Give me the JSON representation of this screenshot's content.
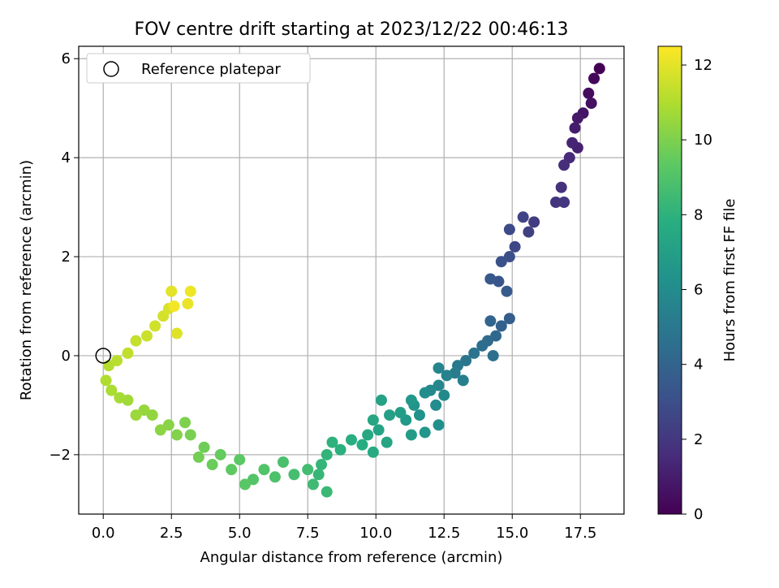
{
  "chart_data": {
    "type": "scatter",
    "title": "FOV centre drift starting at 2023/12/22 00:46:13",
    "xlabel": "Angular distance from reference (arcmin)",
    "ylabel": "Rotation from reference (arcmin)",
    "xlim": [
      -0.9,
      19.1
    ],
    "ylim": [
      -3.2,
      6.25
    ],
    "x_ticks": [
      "0.0",
      "2.5",
      "5.0",
      "7.5",
      "10.0",
      "12.5",
      "15.0",
      "17.5"
    ],
    "y_ticks": [
      "−2",
      "0",
      "2",
      "4",
      "6"
    ],
    "grid": true,
    "legend": {
      "position": "top-left",
      "entries": [
        "Reference platepar"
      ]
    },
    "colorbar": {
      "label": "Hours from first FF file",
      "min": 0,
      "max": 12.5,
      "ticks": [
        "0",
        "2",
        "4",
        "6",
        "8",
        "10",
        "12"
      ],
      "colormap": "viridis"
    },
    "reference_point": {
      "x": 0.0,
      "y": 0.0
    },
    "series": [
      {
        "points": [
          {
            "x": 18.2,
            "y": 5.8,
            "h": 0.0
          },
          {
            "x": 18.0,
            "y": 5.6,
            "h": 0.2
          },
          {
            "x": 17.8,
            "y": 5.3,
            "h": 0.4
          },
          {
            "x": 17.9,
            "y": 5.1,
            "h": 0.55
          },
          {
            "x": 17.6,
            "y": 4.9,
            "h": 0.7
          },
          {
            "x": 17.4,
            "y": 4.8,
            "h": 0.85
          },
          {
            "x": 17.3,
            "y": 4.6,
            "h": 1.0
          },
          {
            "x": 17.4,
            "y": 4.2,
            "h": 1.15
          },
          {
            "x": 17.2,
            "y": 4.3,
            "h": 1.3
          },
          {
            "x": 17.1,
            "y": 4.0,
            "h": 1.45
          },
          {
            "x": 16.9,
            "y": 3.85,
            "h": 1.6
          },
          {
            "x": 16.8,
            "y": 3.4,
            "h": 1.75
          },
          {
            "x": 16.6,
            "y": 3.1,
            "h": 1.9
          },
          {
            "x": 16.9,
            "y": 3.1,
            "h": 2.0
          },
          {
            "x": 15.8,
            "y": 2.7,
            "h": 2.2
          },
          {
            "x": 15.6,
            "y": 2.5,
            "h": 2.35
          },
          {
            "x": 15.4,
            "y": 2.8,
            "h": 2.5
          },
          {
            "x": 15.1,
            "y": 2.2,
            "h": 2.65
          },
          {
            "x": 14.9,
            "y": 2.55,
            "h": 2.8
          },
          {
            "x": 14.9,
            "y": 2.0,
            "h": 2.95
          },
          {
            "x": 14.6,
            "y": 1.9,
            "h": 3.1
          },
          {
            "x": 14.5,
            "y": 1.5,
            "h": 3.25
          },
          {
            "x": 14.2,
            "y": 1.55,
            "h": 3.4
          },
          {
            "x": 14.8,
            "y": 1.3,
            "h": 3.55
          },
          {
            "x": 14.9,
            "y": 0.75,
            "h": 3.7
          },
          {
            "x": 14.6,
            "y": 0.6,
            "h": 3.85
          },
          {
            "x": 14.2,
            "y": 0.7,
            "h": 4.0
          },
          {
            "x": 14.4,
            "y": 0.4,
            "h": 4.15
          },
          {
            "x": 14.1,
            "y": 0.3,
            "h": 4.3
          },
          {
            "x": 13.9,
            "y": 0.2,
            "h": 4.45
          },
          {
            "x": 14.3,
            "y": 0.0,
            "h": 4.6
          },
          {
            "x": 13.6,
            "y": 0.05,
            "h": 4.75
          },
          {
            "x": 13.3,
            "y": -0.1,
            "h": 4.9
          },
          {
            "x": 13.0,
            "y": -0.2,
            "h": 5.05
          },
          {
            "x": 12.9,
            "y": -0.35,
            "h": 5.2
          },
          {
            "x": 13.2,
            "y": -0.5,
            "h": 5.35
          },
          {
            "x": 12.6,
            "y": -0.4,
            "h": 5.5
          },
          {
            "x": 12.3,
            "y": -0.25,
            "h": 5.6
          },
          {
            "x": 12.3,
            "y": -0.6,
            "h": 5.7
          },
          {
            "x": 12.0,
            "y": -0.7,
            "h": 5.8
          },
          {
            "x": 12.5,
            "y": -0.8,
            "h": 5.9
          },
          {
            "x": 12.2,
            "y": -1.0,
            "h": 6.0
          },
          {
            "x": 11.8,
            "y": -0.75,
            "h": 6.1
          },
          {
            "x": 12.3,
            "y": -1.4,
            "h": 6.2
          },
          {
            "x": 11.6,
            "y": -1.2,
            "h": 6.3
          },
          {
            "x": 11.4,
            "y": -1.0,
            "h": 6.4
          },
          {
            "x": 11.8,
            "y": -1.55,
            "h": 6.5
          },
          {
            "x": 11.3,
            "y": -0.9,
            "h": 6.6
          },
          {
            "x": 11.1,
            "y": -1.3,
            "h": 6.7
          },
          {
            "x": 11.3,
            "y": -1.6,
            "h": 6.8
          },
          {
            "x": 10.9,
            "y": -1.15,
            "h": 6.9
          },
          {
            "x": 10.5,
            "y": -1.2,
            "h": 7.0
          },
          {
            "x": 10.2,
            "y": -0.9,
            "h": 7.1
          },
          {
            "x": 10.1,
            "y": -1.5,
            "h": 7.2
          },
          {
            "x": 10.4,
            "y": -1.75,
            "h": 7.3
          },
          {
            "x": 9.9,
            "y": -1.3,
            "h": 7.4
          },
          {
            "x": 9.7,
            "y": -1.6,
            "h": 7.5
          },
          {
            "x": 9.9,
            "y": -1.95,
            "h": 7.6
          },
          {
            "x": 9.5,
            "y": -1.8,
            "h": 7.7
          },
          {
            "x": 9.1,
            "y": -1.7,
            "h": 7.8
          },
          {
            "x": 8.7,
            "y": -1.9,
            "h": 7.9
          },
          {
            "x": 8.4,
            "y": -1.75,
            "h": 8.0
          },
          {
            "x": 8.2,
            "y": -2.0,
            "h": 8.1
          },
          {
            "x": 8.0,
            "y": -2.2,
            "h": 8.2
          },
          {
            "x": 7.9,
            "y": -2.4,
            "h": 8.3
          },
          {
            "x": 8.2,
            "y": -2.75,
            "h": 8.4
          },
          {
            "x": 7.7,
            "y": -2.6,
            "h": 8.5
          },
          {
            "x": 7.5,
            "y": -2.3,
            "h": 8.6
          },
          {
            "x": 7.0,
            "y": -2.4,
            "h": 8.7
          },
          {
            "x": 6.6,
            "y": -2.15,
            "h": 8.8
          },
          {
            "x": 6.3,
            "y": -2.45,
            "h": 8.9
          },
          {
            "x": 5.9,
            "y": -2.3,
            "h": 9.0
          },
          {
            "x": 5.5,
            "y": -2.5,
            "h": 9.1
          },
          {
            "x": 5.2,
            "y": -2.6,
            "h": 9.2
          },
          {
            "x": 5.0,
            "y": -2.1,
            "h": 9.3
          },
          {
            "x": 4.7,
            "y": -2.3,
            "h": 9.4
          },
          {
            "x": 4.3,
            "y": -2.0,
            "h": 9.5
          },
          {
            "x": 4.0,
            "y": -2.2,
            "h": 9.6
          },
          {
            "x": 3.7,
            "y": -1.85,
            "h": 9.7
          },
          {
            "x": 3.5,
            "y": -2.05,
            "h": 9.8
          },
          {
            "x": 3.2,
            "y": -1.6,
            "h": 9.9
          },
          {
            "x": 3.0,
            "y": -1.35,
            "h": 10.0
          },
          {
            "x": 2.7,
            "y": -1.6,
            "h": 10.1
          },
          {
            "x": 2.4,
            "y": -1.4,
            "h": 10.2
          },
          {
            "x": 2.1,
            "y": -1.5,
            "h": 10.3
          },
          {
            "x": 1.8,
            "y": -1.2,
            "h": 10.4
          },
          {
            "x": 1.5,
            "y": -1.1,
            "h": 10.5
          },
          {
            "x": 1.2,
            "y": -1.2,
            "h": 10.6
          },
          {
            "x": 0.9,
            "y": -0.9,
            "h": 10.7
          },
          {
            "x": 0.6,
            "y": -0.85,
            "h": 10.8
          },
          {
            "x": 0.3,
            "y": -0.7,
            "h": 10.9
          },
          {
            "x": 0.1,
            "y": -0.5,
            "h": 11.0
          },
          {
            "x": 0.2,
            "y": -0.2,
            "h": 11.1
          },
          {
            "x": 0.5,
            "y": -0.1,
            "h": 11.2
          },
          {
            "x": 0.9,
            "y": 0.05,
            "h": 11.3
          },
          {
            "x": 1.2,
            "y": 0.3,
            "h": 11.4
          },
          {
            "x": 1.6,
            "y": 0.4,
            "h": 11.5
          },
          {
            "x": 1.9,
            "y": 0.6,
            "h": 11.6
          },
          {
            "x": 2.2,
            "y": 0.8,
            "h": 11.7
          },
          {
            "x": 2.4,
            "y": 0.95,
            "h": 11.8
          },
          {
            "x": 2.7,
            "y": 0.45,
            "h": 11.9
          },
          {
            "x": 2.5,
            "y": 1.3,
            "h": 12.0
          },
          {
            "x": 3.1,
            "y": 1.05,
            "h": 12.1
          },
          {
            "x": 3.2,
            "y": 1.3,
            "h": 12.2
          },
          {
            "x": 2.6,
            "y": 1.0,
            "h": 12.3
          }
        ]
      }
    ]
  }
}
